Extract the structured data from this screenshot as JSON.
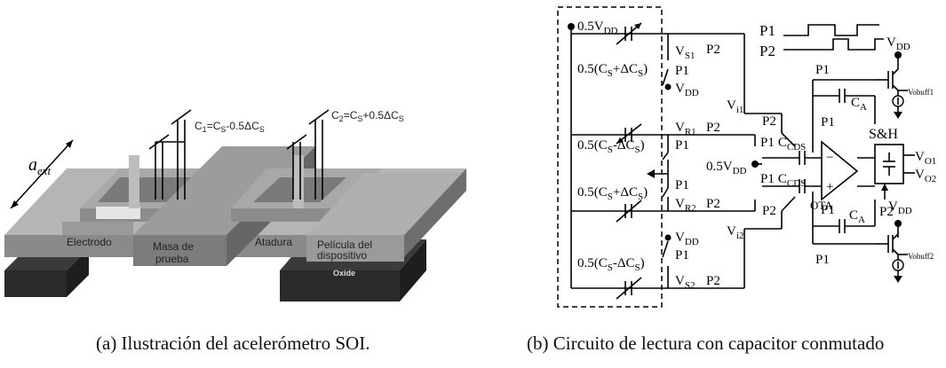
{
  "figure_a": {
    "caption": "(a) Ilustración del acelerómetro SOI.",
    "labels": {
      "a_ext": "a",
      "a_ext_sub": "ext",
      "c1": "C",
      "c1_sub": "1",
      "c1_eq": "=C",
      "c1_s": "S",
      "c1_tail": "-0.5ΔC",
      "c1_tail_s": "S",
      "c2": "C",
      "c2_sub": "2",
      "c2_eq": "=C",
      "c2_s": "S",
      "c2_tail": "+0.5ΔC",
      "c2_tail_s": "S",
      "electrodo": "Electrodo",
      "masa_1": "Masa de",
      "masa_2": "prueba",
      "atadura": "Atadura",
      "pelicula_1": "Película del",
      "pelicula_2": "dispositivo",
      "oxide": "Oxide"
    }
  },
  "figure_b": {
    "caption": "(b) Circuito de lectura con capacitor conmutado",
    "labels": {
      "vdd_half_top": "0.5V",
      "vdd_sub": "DD",
      "cap1": "0.5(C",
      "cap1_s": "S",
      "cap1_tail": "+ΔC",
      "cap1_tail_s": "S",
      "cap1_close": ")",
      "cap2_tail": "-ΔC",
      "vs1": "V",
      "vs1_sub": "S1",
      "vr1": "V",
      "vr1_sub": "R1",
      "vr2": "V",
      "vr2_sub": "R2",
      "vs2": "V",
      "vs2_sub": "S2",
      "vi1": "V",
      "vi1_sub": "i1",
      "vi2": "V",
      "vi2_sub": "i2",
      "p1": "P1",
      "p2": "P2",
      "vdd": "V",
      "ccds": "C",
      "ccds_sub": "CDS",
      "ca": "C",
      "ca_sub": "A",
      "ota": "OTA",
      "sh": "S&H",
      "vo1": "V",
      "vo1_sub": "O1",
      "vo2": "V",
      "vo2_sub": "O2",
      "vobuff1": "Vobuff1",
      "vobuff2": "Vobuff2",
      "vdd_half_mid": "0.5V"
    }
  }
}
